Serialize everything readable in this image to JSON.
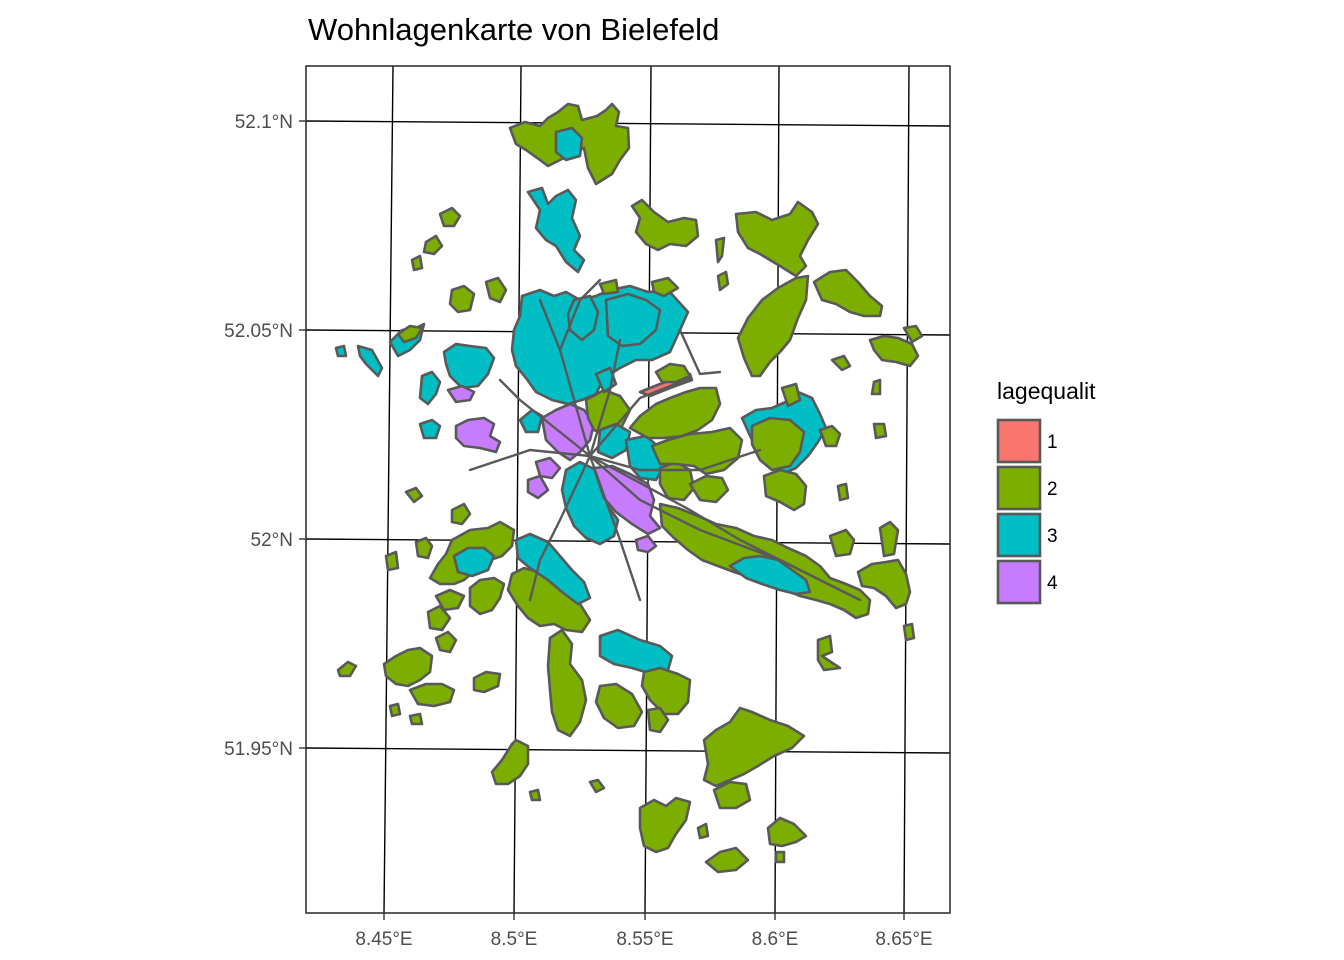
{
  "title": "Wohnlagenkarte von Bielefeld",
  "x_ticks": [
    "8.45°E",
    "8.5°E",
    "8.55°E",
    "8.6°E",
    "8.65°E"
  ],
  "y_ticks": [
    "52.1°N",
    "52.05°N",
    "52°N",
    "51.95°N"
  ],
  "legend": {
    "title": "lagequalit",
    "items": [
      {
        "label": "1",
        "color": "#F8766D"
      },
      {
        "label": "2",
        "color": "#7CAE00"
      },
      {
        "label": "3",
        "color": "#00BFC4"
      },
      {
        "label": "4",
        "color": "#C77CFF"
      }
    ]
  },
  "colors": {
    "outline": "#595959",
    "panel_border": "#333333",
    "grid": "#000000"
  }
}
